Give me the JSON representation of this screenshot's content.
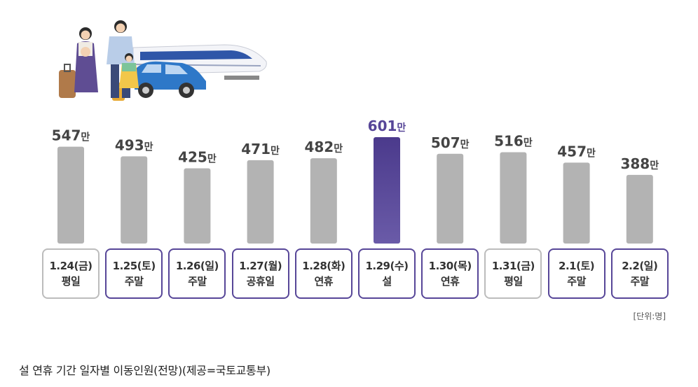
{
  "chart_data": {
    "type": "bar",
    "categories": [
      "1.24(금)",
      "1.25(토)",
      "1.26(일)",
      "1.27(월)",
      "1.28(화)",
      "1.29(수)",
      "1.30(목)",
      "1.31(금)",
      "2.1(토)",
      "2.2(일)"
    ],
    "day_types": [
      "평일",
      "주말",
      "주말",
      "공휴일",
      "연휴",
      "설",
      "연휴",
      "평일",
      "주말",
      "주말"
    ],
    "values": [
      547,
      493,
      425,
      471,
      482,
      601,
      507,
      516,
      457,
      388
    ],
    "boxed_holiday": [
      false,
      true,
      true,
      true,
      true,
      true,
      true,
      false,
      true,
      true
    ],
    "highlight_index": 5,
    "value_suffix": "만",
    "ylim": [
      0,
      601
    ],
    "grid": false,
    "colors": {
      "bar": "#b3b3b3",
      "highlight_top": "#4b3a8c",
      "highlight_bottom": "#6a5ba8",
      "value_text": "#444444",
      "highlight_text": "#574698",
      "holiday_border": "#574698",
      "normal_border": "#bcbcbc"
    }
  },
  "unit_label": "[단위:명]",
  "caption": "설 연휴 기간 일자별 이동인원(전망)(제공=국토교통부)"
}
